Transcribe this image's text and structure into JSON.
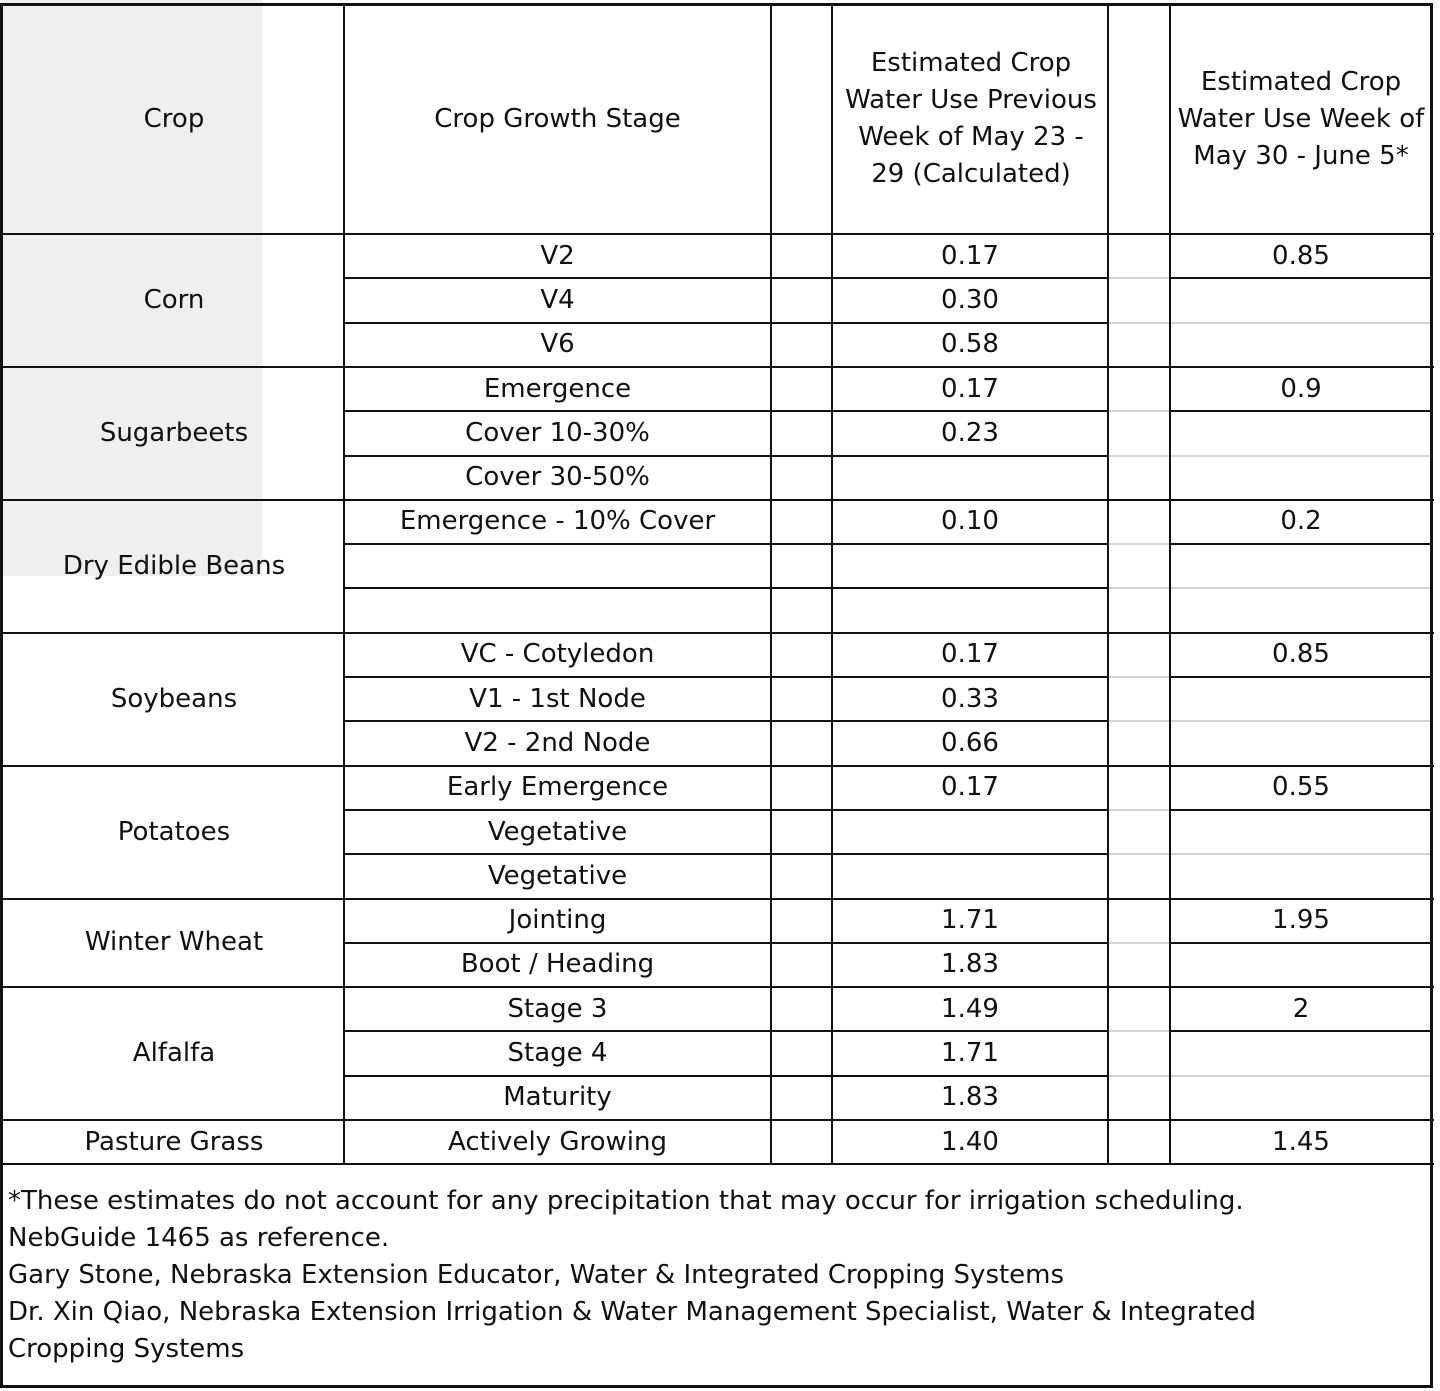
{
  "header": {
    "crop": "Crop",
    "stage": "Crop Growth Stage",
    "prev_week": "Estimated Crop Water Use Previous Week of May 23 - 29 (Calculated)",
    "next_week": "Estimated Crop Water Use Week of May 30 - June 5*"
  },
  "groups": [
    {
      "crop": "Corn",
      "rows": [
        [
          "V2",
          "0.17"
        ],
        [
          "V4",
          "0.30"
        ],
        [
          "V6",
          "0.58"
        ]
      ],
      "estimate": "0.85"
    },
    {
      "crop": "Sugarbeets",
      "rows": [
        [
          "Emergence",
          "0.17"
        ],
        [
          "Cover 10-30%",
          "0.23"
        ],
        [
          "Cover 30-50%",
          ""
        ]
      ],
      "estimate": "0.9"
    },
    {
      "crop": "Dry Edible Beans",
      "rows": [
        [
          "Emergence - 10% Cover",
          "0.10"
        ],
        [
          "",
          ""
        ],
        [
          "",
          ""
        ]
      ],
      "estimate": "0.2"
    },
    {
      "crop": "Soybeans",
      "rows": [
        [
          "VC - Cotyledon",
          "0.17"
        ],
        [
          "V1 - 1st Node",
          "0.33"
        ],
        [
          "V2 - 2nd Node",
          "0.66"
        ]
      ],
      "estimate": "0.85"
    },
    {
      "crop": "Potatoes",
      "rows": [
        [
          "Early Emergence",
          "0.17"
        ],
        [
          "Vegetative",
          ""
        ],
        [
          "Vegetative",
          ""
        ]
      ],
      "estimate": "0.55"
    },
    {
      "crop": "Winter Wheat",
      "rows": [
        [
          "Jointing",
          "1.71"
        ],
        [
          "Boot / Heading",
          "1.83"
        ]
      ],
      "estimate": "1.95"
    },
    {
      "crop": "Alfalfa",
      "rows": [
        [
          "Stage 3",
          "1.49"
        ],
        [
          "Stage 4",
          "1.71"
        ],
        [
          "Maturity",
          "1.83"
        ]
      ],
      "estimate": "2"
    },
    {
      "crop": "Pasture Grass",
      "rows": [
        [
          "Actively Growing",
          "1.40"
        ]
      ],
      "estimate": "1.45"
    }
  ],
  "footnote": {
    "lines": [
      "*These estimates do not account for any precipitation that may occur for irrigation scheduling.",
      "NebGuide 1465 as reference.",
      "Gary Stone, Nebraska Extension Educator, Water & Integrated Cropping Systems",
      "Dr. Xin Qiao, Nebraska Extension Irrigation & Water Management Specialist, Water & Integrated",
      "Cropping Systems"
    ]
  }
}
